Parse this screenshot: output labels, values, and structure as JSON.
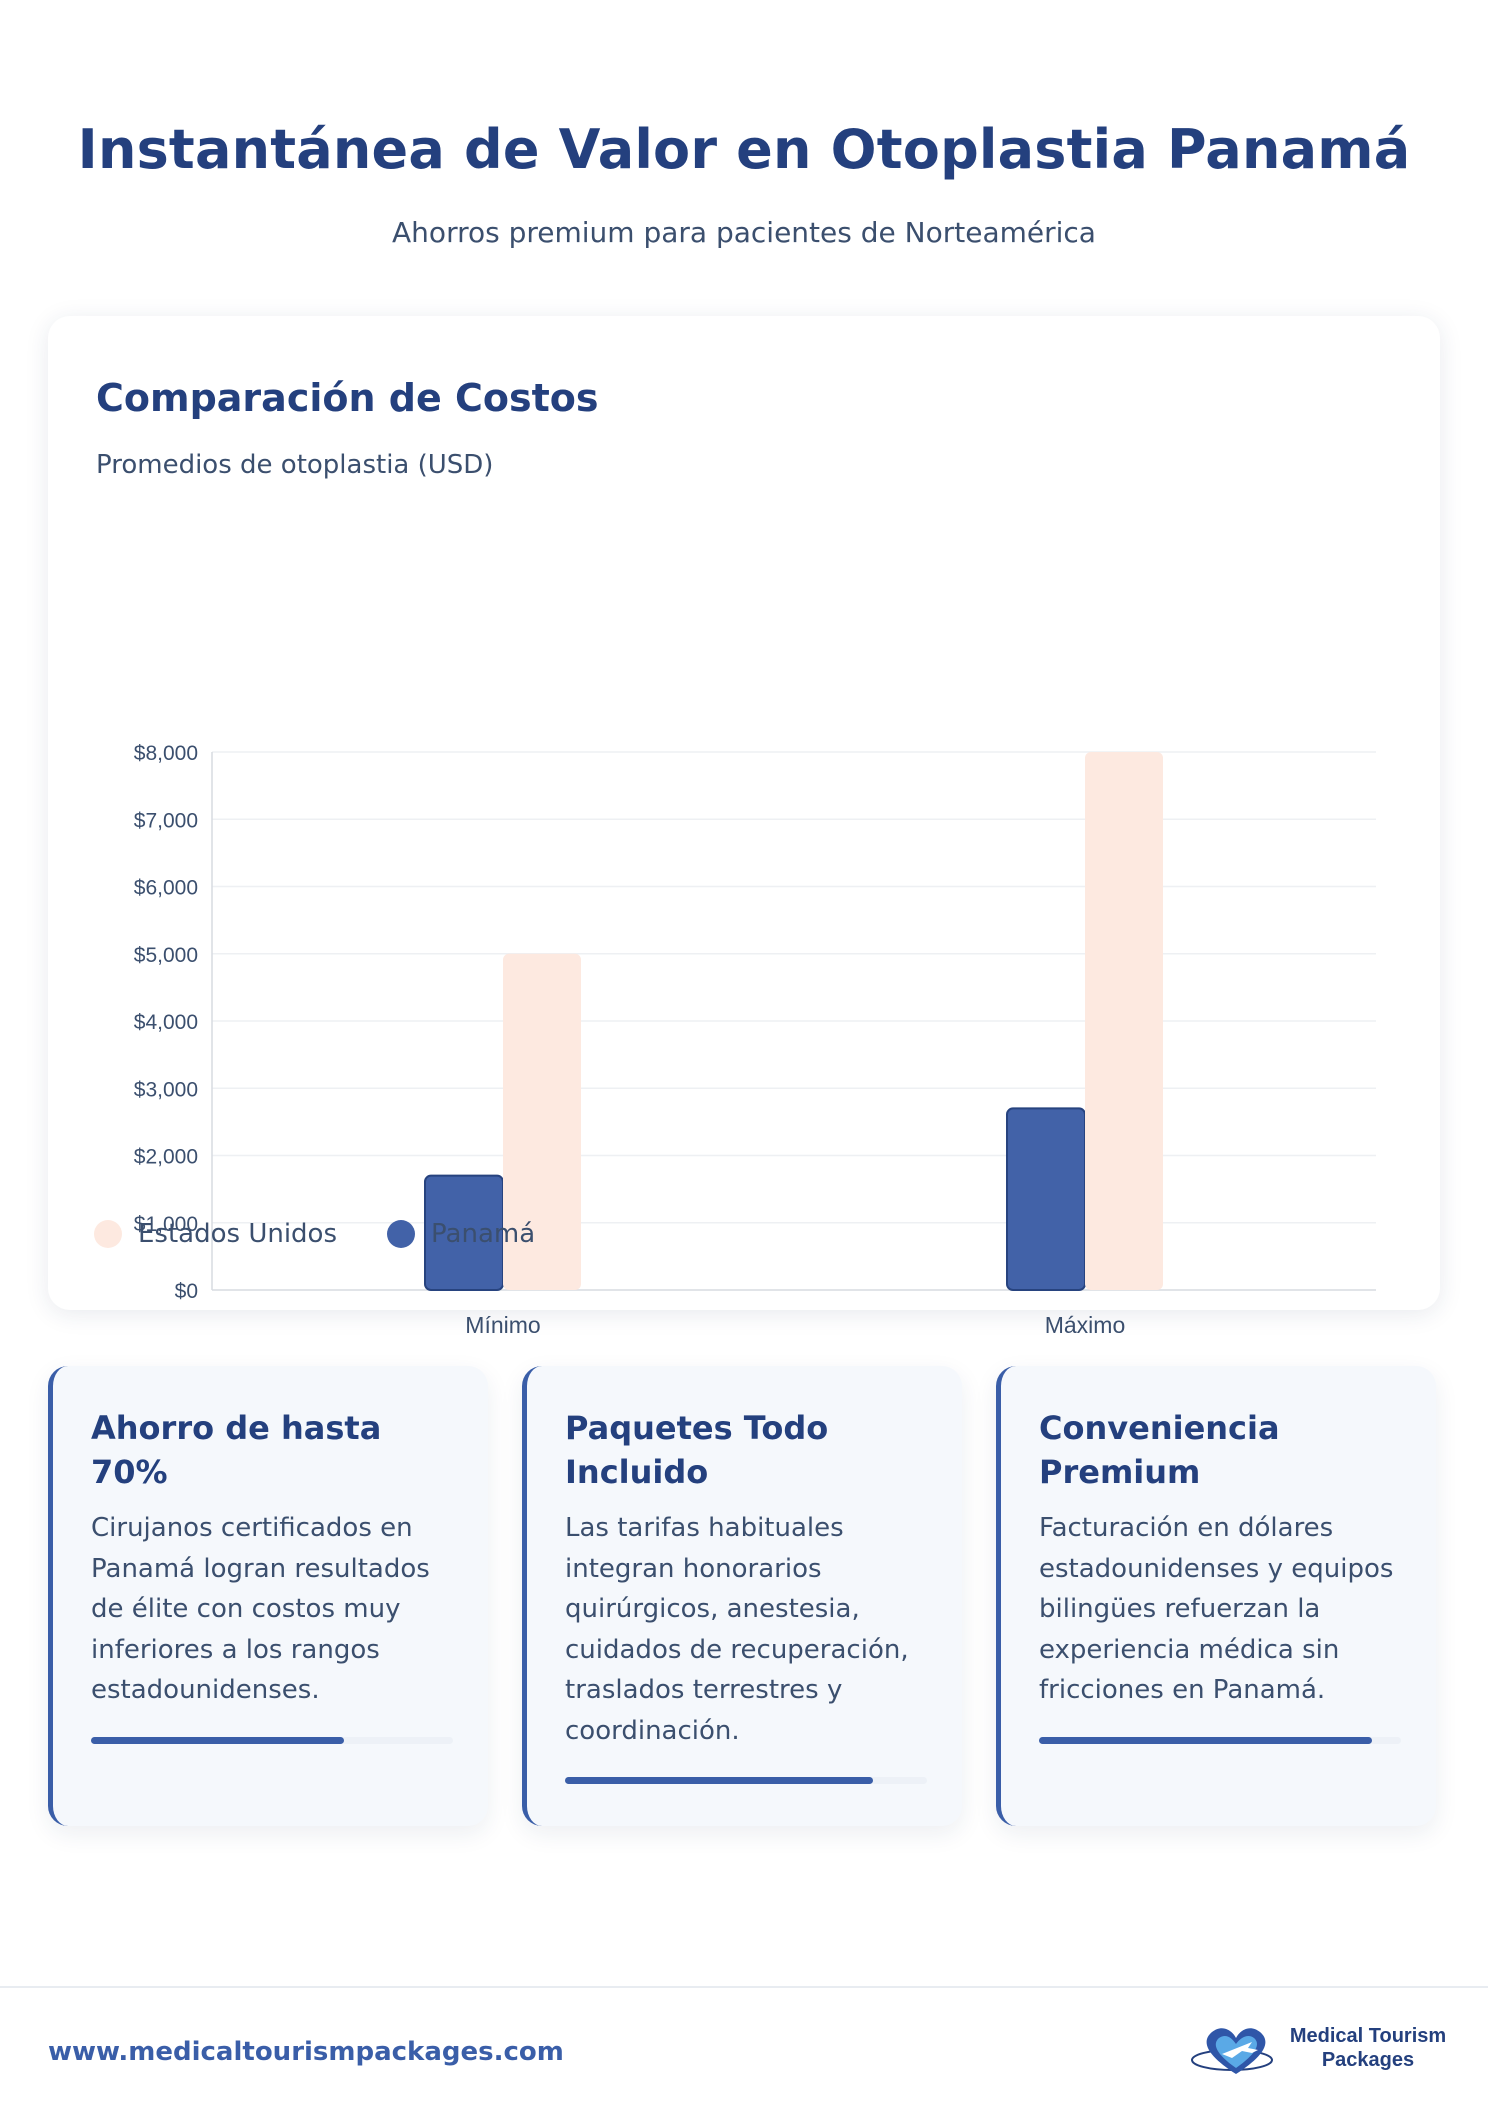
{
  "header": {
    "title": "Instantánea de Valor en Otoplastia Panamá",
    "subtitle": "Ahorros premium para pacientes de Norteamérica"
  },
  "chart_card": {
    "title": "Comparación de Costos",
    "subtitle": "Promedios de otoplastia (USD)"
  },
  "chart_data": {
    "type": "bar",
    "categories": [
      "Mínimo",
      "Máximo"
    ],
    "series": [
      {
        "name": "Panamá",
        "values": [
          1700,
          2700
        ],
        "color": "#4262a8"
      },
      {
        "name": "Estados Unidos",
        "values": [
          5000,
          8000
        ],
        "color": "#fde9e0"
      }
    ],
    "yticks": [
      "$0",
      "$1,000",
      "$2,000",
      "$3,000",
      "$4,000",
      "$5,000",
      "$6,000",
      "$7,000",
      "$8,000"
    ],
    "ylim": [
      0,
      8000
    ],
    "grid": true,
    "legend_position": "bottom-left",
    "legend": [
      {
        "label": "Estados Unidos",
        "color": "#fde9e0"
      },
      {
        "label": "Panamá",
        "color": "#4262a8"
      }
    ]
  },
  "features": [
    {
      "title": "Ahorro de hasta 70%",
      "text": "Cirujanos certificados en Panamá logran resultados de élite con costos muy inferiores a los rangos estadounidenses.",
      "progress": 0.7
    },
    {
      "title": "Paquetes Todo Incluido",
      "text": "Las tarifas habituales integran honorarios quirúrgicos, anestesia, cuidados de recuperación, traslados terrestres y coordinación.",
      "progress": 0.85
    },
    {
      "title": "Conveniencia Premium",
      "text": "Facturación en dólares estadounidenses y equipos bilingües refuerzan la experiencia médica sin fricciones en Panamá.",
      "progress": 0.92
    }
  ],
  "footer": {
    "url": "www.medicaltourismpackages.com",
    "logo_line1": "Medical Tourism",
    "logo_line2": "Packages",
    "logo_icon": "heart-airplane-icon"
  },
  "colors": {
    "primary": "#24407e",
    "accent": "#3a5ea8",
    "panama": "#4262a8",
    "usa": "#fde9e0"
  }
}
